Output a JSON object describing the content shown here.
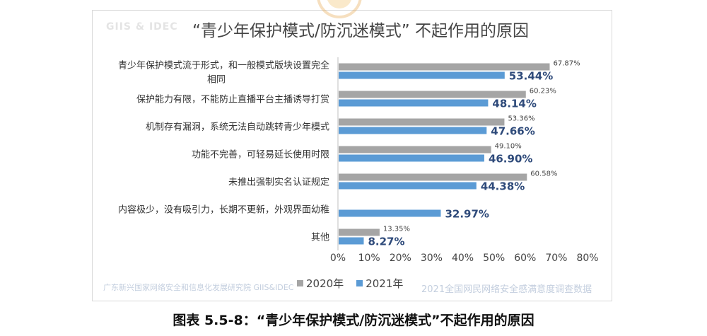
{
  "chart_title": "“青少年保护模式/防沉迷模式” 不起作用的原因",
  "caption": "图表 5.5-8：“青少年保护模式/防沉迷模式”不起作用的原因",
  "watermarks": {
    "top_left": "GIIS & IDEC",
    "bottom_left": "广东新兴国家网络安全和信息化发展研究院  GIIS&IDEC",
    "bottom_right": "2021全国网民网络安全感满意度调查数据"
  },
  "colors": {
    "s2020": "#a5a5a5",
    "s2021": "#5b9bd5",
    "label2021": "#2e4a7a",
    "label2020": "#444444",
    "axis": "#bfbfbf"
  },
  "chart_data": {
    "type": "bar",
    "orientation": "horizontal",
    "title": "“青少年保护模式/防沉迷模式” 不起作用的原因",
    "categories": [
      [
        "青少年保护模式流于形式，和一般模式版块设置完全",
        "相同"
      ],
      [
        "保护能力有限，不能防止直播平台主播诱导打赏"
      ],
      [
        "机制存有漏洞，系统无法自动跳转青少年模式"
      ],
      [
        "功能不完善，可轻易延长使用时限"
      ],
      [
        "未推出强制实名认证规定"
      ],
      [
        "内容极少，没有吸引力，长期不更新，外观界面幼稚"
      ],
      [
        "其他"
      ]
    ],
    "series": [
      {
        "name": "2020年",
        "values": [
          67.87,
          60.23,
          53.36,
          49.1,
          60.58,
          null,
          13.35
        ],
        "labels": [
          "67.87%",
          "60.23%",
          "53.36%",
          "49.10%",
          "60.58%",
          "",
          "13.35%"
        ]
      },
      {
        "name": "2021年",
        "values": [
          53.44,
          48.14,
          47.66,
          46.9,
          44.38,
          32.97,
          8.27
        ],
        "labels": [
          "53.44%",
          "48.14%",
          "47.66%",
          "46.90%",
          "44.38%",
          "32.97%",
          "8.27%"
        ]
      }
    ],
    "xlim": [
      0,
      80
    ],
    "xticks": [
      "0%",
      "10%",
      "20%",
      "30%",
      "40%",
      "50%",
      "60%",
      "70%",
      "80%"
    ],
    "legend_position": "bottom",
    "grid": false
  }
}
